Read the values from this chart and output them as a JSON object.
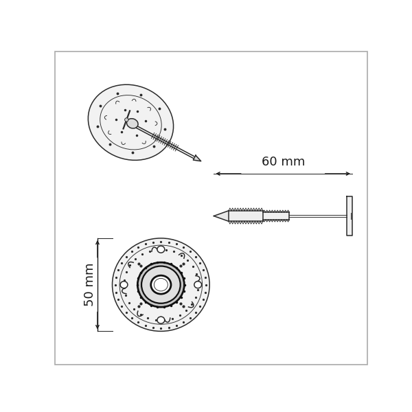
{
  "bg_color": "#ffffff",
  "line_color": "#2a2a2a",
  "dim_color": "#1a1a1a",
  "label_60mm": "60 mm",
  "label_50mm": "50 mm",
  "figsize": [
    6.0,
    6.0
  ],
  "dpi": 100
}
